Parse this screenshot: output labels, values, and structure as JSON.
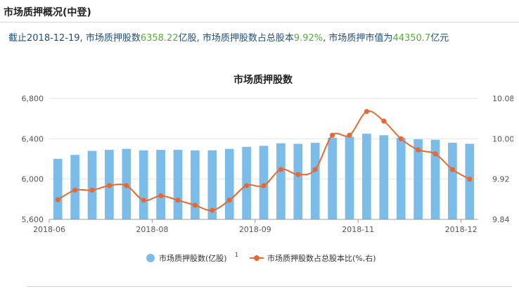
{
  "header": {
    "title": "市场质押概况(中登)"
  },
  "summary": {
    "p1": "截止2018-12-19, 市场质押股数",
    "v1": "6358.22",
    "p2": "亿股, 市场质押股数占总股本",
    "v2": "9.92%",
    "p3": ", 市场质押市值为",
    "v3": "44350.7",
    "p4": "亿元"
  },
  "colors": {
    "bar": "#7cbce8",
    "line": "#e8692f",
    "axis": "#999999",
    "grid": "#e3e3e3"
  },
  "chart_data": {
    "type": "bar+line",
    "title": "市场质押股数",
    "x_tick_labels": [
      "2018-06",
      "2018-08",
      "2018-09",
      "2018-11",
      "2018-12"
    ],
    "x_tick_indices": [
      0,
      6,
      12,
      18,
      24
    ],
    "y_left": {
      "min": 5600,
      "max": 6800,
      "ticks": [
        5600,
        6000,
        6400,
        6800
      ],
      "tick_labels": [
        "5,600",
        "6,000",
        "6,400",
        "6,800"
      ]
    },
    "y_right": {
      "min": 9.84,
      "max": 10.08,
      "ticks": [
        9.84,
        9.92,
        10.0,
        10.08
      ],
      "tick_labels": [
        "9.84",
        "9.92",
        "10.00",
        "10.08"
      ]
    },
    "series": [
      {
        "name": "市场质押股数(亿股)",
        "name_sup": "1",
        "axis": "left",
        "type": "bar",
        "values": [
          6200,
          6240,
          6280,
          6290,
          6300,
          6285,
          6290,
          6290,
          6285,
          6285,
          6300,
          6320,
          6330,
          6355,
          6350,
          6360,
          6410,
          6420,
          6450,
          6435,
          6410,
          6395,
          6390,
          6360,
          6350
        ]
      },
      {
        "name": "市场质押股数占总股本比(%,右)",
        "axis": "right",
        "type": "line",
        "values": [
          9.879,
          9.898,
          9.898,
          9.907,
          9.907,
          9.878,
          9.887,
          9.878,
          9.868,
          9.858,
          9.878,
          9.907,
          9.907,
          9.939,
          9.929,
          9.939,
          10.007,
          10.007,
          10.054,
          10.035,
          10.0,
          9.978,
          9.97,
          9.939,
          9.92
        ]
      }
    ]
  }
}
